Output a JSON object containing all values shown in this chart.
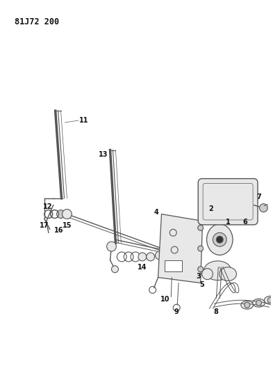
{
  "title": "81J72 200",
  "bg_color": "#ffffff",
  "line_color": "#555555",
  "dark_color": "#333333",
  "gray_fill": "#cccccc",
  "light_fill": "#e8e8e8",
  "text_color": "#111111",
  "title_fontsize": 8.5,
  "label_fontsize": 7,
  "figsize": [
    3.93,
    5.33
  ],
  "dpi": 100
}
